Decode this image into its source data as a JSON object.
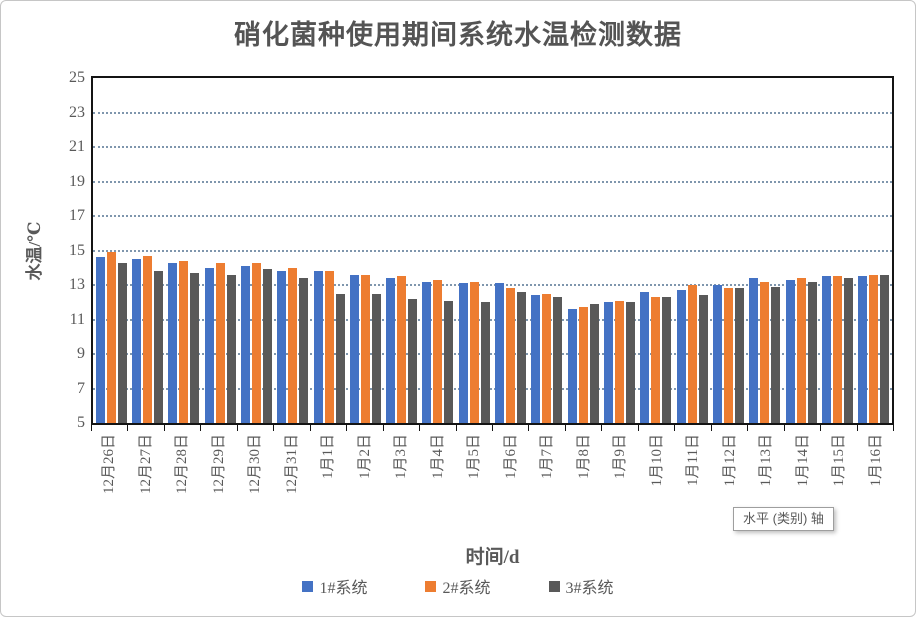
{
  "page": {
    "axis_tooltip": "水平 (类别) 轴"
  },
  "chart_data": {
    "type": "bar",
    "title": "硝化菌种使用期间系统水温检测数据",
    "xlabel": "时间/d",
    "ylabel": "水温/℃",
    "ylim": [
      5,
      25
    ],
    "ytick_step": 2,
    "grid": "horizontal dotted gridlines",
    "legend_position": "bottom",
    "categories": [
      "12月26日",
      "12月27日",
      "12月28日",
      "12月29日",
      "12月30日",
      "12月31日",
      "1月1日",
      "1月2日",
      "1月3日",
      "1月4日",
      "1月5日",
      "1月6日",
      "1月7日",
      "1月8日",
      "1月9日",
      "1月10日",
      "1月11日",
      "1月12日",
      "1月13日",
      "1月14日",
      "1月15日",
      "1月16日"
    ],
    "series": [
      {
        "name": "1#系统",
        "color": "#4472C4",
        "values": [
          14.6,
          14.5,
          14.3,
          14.0,
          14.1,
          13.8,
          13.8,
          13.6,
          13.4,
          13.2,
          13.1,
          13.1,
          12.4,
          11.6,
          12.0,
          12.6,
          12.7,
          13.0,
          13.4,
          13.3,
          13.5,
          13.5
        ]
      },
      {
        "name": "2#系统",
        "color": "#ED7D31",
        "values": [
          14.9,
          14.7,
          14.4,
          14.3,
          14.3,
          14.0,
          13.8,
          13.6,
          13.5,
          13.3,
          13.2,
          12.8,
          12.5,
          11.7,
          12.1,
          12.3,
          13.0,
          12.8,
          13.2,
          13.4,
          13.5,
          13.6
        ]
      },
      {
        "name": "3#系统",
        "color": "#595959",
        "values": [
          14.3,
          13.8,
          13.7,
          13.6,
          13.9,
          13.4,
          12.5,
          12.5,
          12.2,
          12.1,
          12.0,
          12.6,
          12.3,
          11.9,
          12.0,
          12.3,
          12.4,
          12.8,
          12.9,
          13.2,
          13.4,
          13.6
        ]
      }
    ],
    "colors": {
      "axis_text": "#595959",
      "axis_line": "#141414",
      "gridline": "#7f96ad"
    }
  }
}
